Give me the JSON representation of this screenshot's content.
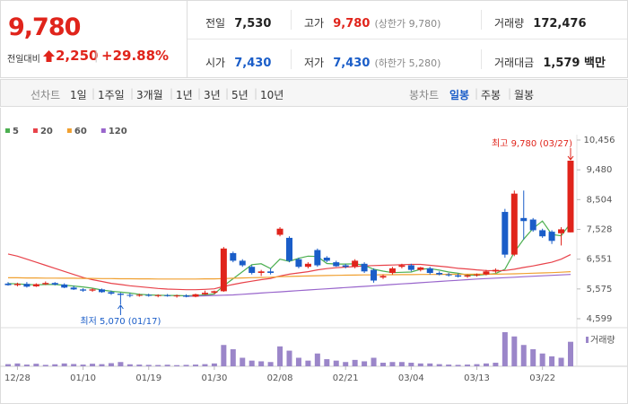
{
  "header": {
    "price": "9,780",
    "change_label": "전일대비",
    "change": "2,250",
    "change_pct": "+29.88%",
    "stats": [
      {
        "label": "전일",
        "value": "7,530"
      },
      {
        "label": "고가",
        "value": "9,780",
        "note": "(상한가 9,780)"
      },
      {
        "label": "거래량",
        "value": "172,476"
      },
      {
        "label": "시가",
        "value": "7,430"
      },
      {
        "label": "저가",
        "value": "7,430",
        "note": "(하한가 5,280)"
      },
      {
        "label": "거래대금",
        "value": "1,579 백만"
      }
    ]
  },
  "tabs": {
    "line_label": "선차트",
    "line_periods": [
      "1일",
      "1주일",
      "3개월",
      "1년",
      "3년",
      "5년",
      "10년"
    ],
    "candle_label": "봉차트",
    "candle_periods": [
      "일봉",
      "주봉",
      "월봉"
    ],
    "selected_index": 0
  },
  "chart_data": {
    "type": "candlestick",
    "categories": [
      null,
      "12/28",
      null,
      null,
      null,
      null,
      null,
      null,
      "01/10",
      null,
      null,
      null,
      null,
      null,
      null,
      "01/19",
      null,
      null,
      null,
      null,
      null,
      null,
      "01/30",
      null,
      null,
      null,
      null,
      null,
      null,
      "02/08",
      null,
      null,
      null,
      null,
      null,
      null,
      "02/21",
      null,
      null,
      null,
      null,
      null,
      null,
      "03/04",
      null,
      null,
      null,
      null,
      null,
      null,
      "03/13",
      null,
      null,
      null,
      null,
      null,
      null,
      "03/22",
      null,
      null,
      null
    ],
    "open": [
      5750,
      5700,
      5740,
      5660,
      5730,
      5770,
      5720,
      5620,
      5560,
      5520,
      5560,
      5470,
      5420,
      5380,
      5360,
      5380,
      5350,
      5370,
      5340,
      5360,
      5320,
      5400,
      5450,
      5500,
      6750,
      6500,
      6300,
      6100,
      6150,
      7350,
      7250,
      6550,
      6300,
      6850,
      6600,
      6450,
      6350,
      6300,
      6400,
      6200,
      5950,
      6100,
      6300,
      6350,
      6200,
      6250,
      6100,
      6050,
      6020,
      5980,
      6020,
      6050,
      6150,
      8100,
      6700,
      7900,
      7850,
      7500,
      7450,
      7400,
      7430
    ],
    "high": [
      5800,
      5780,
      5800,
      5760,
      5820,
      5800,
      5760,
      5680,
      5600,
      5600,
      5590,
      5520,
      5450,
      5440,
      5420,
      5420,
      5400,
      5410,
      5390,
      5400,
      5420,
      5520,
      5520,
      6950,
      6800,
      6550,
      6350,
      6200,
      6250,
      7600,
      7300,
      6600,
      6450,
      6900,
      6650,
      6500,
      6400,
      6550,
      6450,
      6250,
      6050,
      6300,
      6400,
      6400,
      6300,
      6300,
      6150,
      6100,
      6080,
      6050,
      6080,
      6200,
      6250,
      8200,
      8800,
      8800,
      7900,
      7550,
      7500,
      7600,
      9780
    ],
    "low": [
      5680,
      5660,
      5620,
      5640,
      5700,
      5690,
      5600,
      5540,
      5480,
      5480,
      5450,
      5380,
      5070,
      5300,
      5320,
      5320,
      5300,
      5320,
      5290,
      5300,
      5300,
      5380,
      5400,
      5480,
      6450,
      6300,
      6050,
      6000,
      6050,
      7300,
      6450,
      6250,
      6250,
      6300,
      6450,
      6300,
      6250,
      6250,
      6100,
      5780,
      5900,
      6050,
      6250,
      6150,
      6150,
      6050,
      6020,
      5980,
      5950,
      5940,
      5980,
      6020,
      6100,
      6600,
      6650,
      7200,
      7450,
      7250,
      7050,
      7000,
      7430
    ],
    "close": [
      5700,
      5740,
      5650,
      5730,
      5770,
      5720,
      5620,
      5560,
      5520,
      5560,
      5470,
      5420,
      5380,
      5360,
      5380,
      5350,
      5370,
      5340,
      5360,
      5320,
      5400,
      5450,
      5500,
      6900,
      6500,
      6350,
      6100,
      6150,
      6100,
      7550,
      6500,
      6300,
      6400,
      6350,
      6500,
      6320,
      6300,
      6500,
      6150,
      5850,
      6000,
      6250,
      6350,
      6200,
      6280,
      6100,
      6050,
      6020,
      5980,
      6020,
      6050,
      6150,
      6200,
      6700,
      8700,
      7800,
      7500,
      7300,
      7150,
      7530,
      9780
    ],
    "up_color": "#e0241b",
    "down_color": "#1a5dc8",
    "ylim": [
      4599,
      10456
    ],
    "yticks": [
      {
        "value": 4599,
        "label": "4,599"
      },
      {
        "value": 5575,
        "label": "5,575"
      },
      {
        "value": 6551,
        "label": "6,551"
      },
      {
        "value": 7528,
        "label": "7,528"
      },
      {
        "value": 8504,
        "label": "8,504"
      },
      {
        "value": 9480,
        "label": "9,480"
      },
      {
        "value": 10456,
        "label": "10,456"
      }
    ],
    "moving_averages": [
      {
        "name": "5",
        "color": "#4caf50",
        "values": [
          5750,
          5740,
          5720,
          5710,
          5720,
          5720,
          5700,
          5670,
          5640,
          5600,
          5540,
          5500,
          5470,
          5440,
          5400,
          5380,
          5370,
          5360,
          5360,
          5350,
          5360,
          5380,
          5410,
          5680,
          5910,
          6140,
          6370,
          6400,
          6240,
          6550,
          6480,
          6580,
          6650,
          6640,
          6410,
          6390,
          6390,
          6400,
          6350,
          6220,
          6160,
          6110,
          6120,
          6130,
          6220,
          6240,
          6190,
          6130,
          6090,
          6030,
          6020,
          6050,
          6080,
          6220,
          6780,
          7210,
          7560,
          7800,
          7360,
          7320,
          7730
        ]
      },
      {
        "name": "20",
        "color": "#e8424a",
        "values": [
          6720,
          6650,
          6550,
          6450,
          6350,
          6250,
          6150,
          6050,
          5950,
          5880,
          5820,
          5760,
          5720,
          5680,
          5650,
          5620,
          5590,
          5570,
          5560,
          5550,
          5550,
          5560,
          5580,
          5660,
          5720,
          5780,
          5830,
          5880,
          5920,
          6000,
          6060,
          6100,
          6140,
          6200,
          6240,
          6270,
          6290,
          6310,
          6330,
          6340,
          6350,
          6360,
          6370,
          6380,
          6380,
          6350,
          6320,
          6290,
          6250,
          6230,
          6200,
          6180,
          6170,
          6180,
          6220,
          6280,
          6330,
          6390,
          6450,
          6550,
          6700
        ]
      },
      {
        "name": "60",
        "color": "#f0a030",
        "values": [
          5940,
          5940,
          5935,
          5935,
          5930,
          5930,
          5925,
          5925,
          5920,
          5920,
          5915,
          5915,
          5910,
          5910,
          5905,
          5905,
          5900,
          5900,
          5900,
          5900,
          5900,
          5905,
          5905,
          5915,
          5925,
          5935,
          5945,
          5950,
          5960,
          5975,
          5985,
          5995,
          6000,
          6010,
          6015,
          6020,
          6025,
          6030,
          6035,
          6035,
          6040,
          6040,
          6045,
          6045,
          6050,
          6050,
          6050,
          6055,
          6055,
          6055,
          6060,
          6060,
          6060,
          6065,
          6070,
          6080,
          6090,
          6100,
          6110,
          6125,
          6140
        ]
      },
      {
        "name": "120",
        "color": "#9966cc",
        "values": [
          null,
          null,
          null,
          null,
          null,
          null,
          null,
          null,
          null,
          null,
          null,
          null,
          null,
          null,
          null,
          null,
          null,
          null,
          null,
          5330,
          5340,
          5350,
          5360,
          5370,
          5380,
          5400,
          5420,
          5440,
          5460,
          5480,
          5500,
          5520,
          5540,
          5560,
          5580,
          5600,
          5620,
          5640,
          5660,
          5680,
          5700,
          5720,
          5740,
          5760,
          5780,
          5800,
          5820,
          5840,
          5860,
          5880,
          5900,
          5915,
          5930,
          5945,
          5960,
          5975,
          5990,
          6005,
          6020,
          6035,
          6050
        ]
      }
    ],
    "volume": {
      "name": "거래량",
      "color": "#9b86c9",
      "values": [
        15000,
        20000,
        12000,
        18000,
        10000,
        14000,
        20000,
        16000,
        12000,
        18000,
        15000,
        22000,
        30000,
        14000,
        12000,
        10000,
        9000,
        11000,
        8000,
        10000,
        12000,
        15000,
        20000,
        150000,
        120000,
        60000,
        40000,
        35000,
        30000,
        140000,
        110000,
        60000,
        40000,
        90000,
        50000,
        40000,
        30000,
        45000,
        35000,
        60000,
        25000,
        30000,
        30000,
        25000,
        20000,
        20000,
        15000,
        12000,
        10000,
        12000,
        15000,
        20000,
        25000,
        240000,
        210000,
        150000,
        120000,
        90000,
        70000,
        60000,
        172476
      ]
    },
    "annotations": [
      {
        "text": "최고 9,780 (03/27)",
        "color": "#e0241b"
      },
      {
        "text": "최저 5,070 (01/17)",
        "color": "#1a5dc8"
      }
    ]
  }
}
